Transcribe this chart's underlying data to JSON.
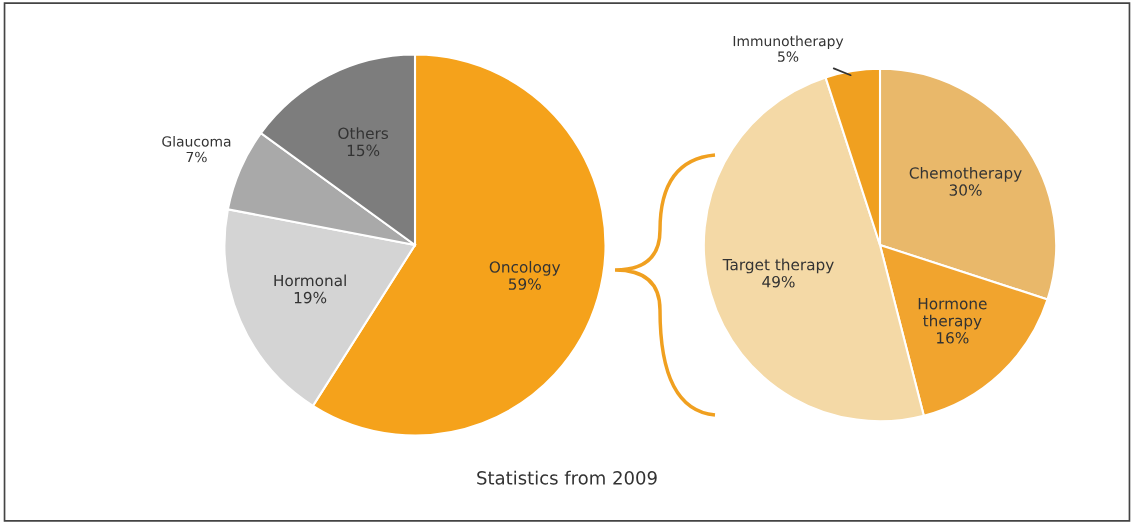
{
  "chart_data": [
    {
      "type": "pie",
      "categories": [
        "Oncology",
        "Hormonal",
        "Glaucoma",
        "Others"
      ],
      "values": [
        59,
        19,
        7,
        15
      ],
      "value_labels": [
        "59%",
        "19%",
        "7%",
        "15%"
      ],
      "colors": [
        "#f5a21b",
        "#d4d4d4",
        "#a9a9a9",
        "#7d7d7d"
      ],
      "annotations": [
        "Statistics from 2009"
      ]
    },
    {
      "type": "pie",
      "categories": [
        "Chemotherapy",
        "Hormone therapy",
        "Target therapy",
        "Immunotherapy"
      ],
      "values": [
        30,
        16,
        49,
        5
      ],
      "value_labels": [
        "30%",
        "16%",
        "49%",
        "5%"
      ],
      "colors": [
        "#e9b86a",
        "#f1a42e",
        "#f4d9a6",
        "#f0a020"
      ]
    }
  ]
}
